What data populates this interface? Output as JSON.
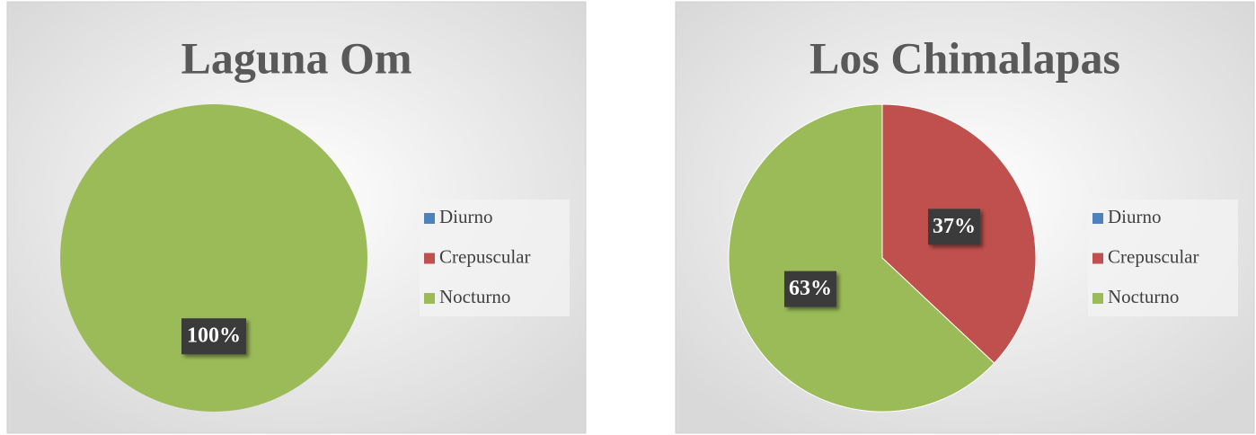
{
  "chart_data": [
    {
      "type": "pie",
      "title": "Laguna Om",
      "categories": [
        "Diurno",
        "Crepuscular",
        "Nocturno"
      ],
      "values": [
        0,
        0,
        100
      ],
      "value_labels": [
        null,
        null,
        "100%"
      ],
      "colors": [
        "#4f81bd",
        "#c0504d",
        "#9bbb59"
      ],
      "legend": "right"
    },
    {
      "type": "pie",
      "title": "Los Chimalapas",
      "categories": [
        "Diurno",
        "Crepuscular",
        "Nocturno"
      ],
      "values": [
        0,
        37,
        63
      ],
      "value_labels": [
        null,
        "37%",
        "63%"
      ],
      "colors": [
        "#4f81bd",
        "#c0504d",
        "#9bbb59"
      ],
      "legend": "right"
    }
  ]
}
